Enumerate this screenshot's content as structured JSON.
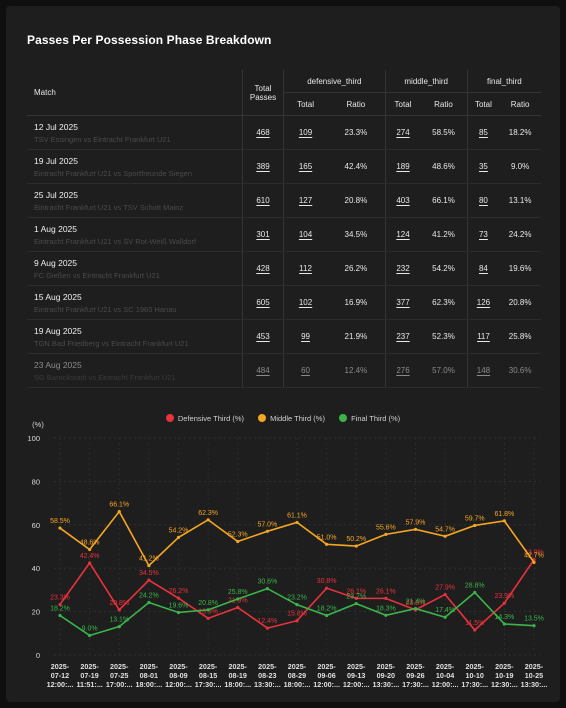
{
  "title": "Passes Per Possession Phase Breakdown",
  "table": {
    "headers": {
      "match": "Match",
      "total_passes": "Total Passes",
      "groups": [
        "defensive_third",
        "middle_third",
        "final_third"
      ],
      "total": "Total",
      "ratio": "Ratio"
    },
    "rows": [
      {
        "date": "12 Jul 2025",
        "teams": "TSV Essingen vs Eintracht Frankfurt U21",
        "total": "468",
        "def_total": "109",
        "def_ratio": "23.3%",
        "mid_total": "274",
        "mid_ratio": "58.5%",
        "fin_total": "85",
        "fin_ratio": "18.2%"
      },
      {
        "date": "19 Jul 2025",
        "teams": "Eintracht Frankfurt U21 vs Sportfreunde Siegen",
        "total": "389",
        "def_total": "165",
        "def_ratio": "42.4%",
        "mid_total": "189",
        "mid_ratio": "48.6%",
        "fin_total": "35",
        "fin_ratio": "9.0%"
      },
      {
        "date": "25 Jul 2025",
        "teams": "Eintracht Frankfurt U21 vs TSV Schott Mainz",
        "total": "610",
        "def_total": "127",
        "def_ratio": "20.8%",
        "mid_total": "403",
        "mid_ratio": "66.1%",
        "fin_total": "80",
        "fin_ratio": "13.1%"
      },
      {
        "date": "1 Aug 2025",
        "teams": "Eintracht Frankfurt U21 vs SV Rot-Weiß Walldorf",
        "total": "301",
        "def_total": "104",
        "def_ratio": "34.5%",
        "mid_total": "124",
        "mid_ratio": "41.2%",
        "fin_total": "73",
        "fin_ratio": "24.2%"
      },
      {
        "date": "9 Aug 2025",
        "teams": "FC Gießen vs Eintracht Frankfurt U21",
        "total": "428",
        "def_total": "112",
        "def_ratio": "26.2%",
        "mid_total": "232",
        "mid_ratio": "54.2%",
        "fin_total": "84",
        "fin_ratio": "19.6%"
      },
      {
        "date": "15 Aug 2025",
        "teams": "Eintracht Frankfurt U21 vs SC 1960 Hanau",
        "total": "605",
        "def_total": "102",
        "def_ratio": "16.9%",
        "mid_total": "377",
        "mid_ratio": "62.3%",
        "fin_total": "126",
        "fin_ratio": "20.8%"
      },
      {
        "date": "19 Aug 2025",
        "teams": "TGN Bad Friedberg vs Eintracht Frankfurt U21",
        "total": "453",
        "def_total": "99",
        "def_ratio": "21.9%",
        "mid_total": "237",
        "mid_ratio": "52.3%",
        "fin_total": "117",
        "fin_ratio": "25.8%"
      },
      {
        "date": "23 Aug 2025",
        "teams": "SG Barockstadt vs Eintracht Frankfurt U21",
        "total": "484",
        "def_total": "60",
        "def_ratio": "12.4%",
        "mid_total": "276",
        "mid_ratio": "57.0%",
        "fin_total": "148",
        "fin_ratio": "30.6%"
      }
    ]
  },
  "chart_data": {
    "type": "line",
    "ylabel": "(%)",
    "ylim": [
      0,
      100
    ],
    "yticks": [
      0,
      20,
      40,
      60,
      80,
      100
    ],
    "grid": true,
    "legend_position": "top-center",
    "x": [
      "2025-07-12 12:00:...",
      "2025-07-19 11:51:...",
      "2025-07-25 17:00:...",
      "2025-08-01 18:00:...",
      "2025-08-09 12:00:...",
      "2025-08-15 17:30:...",
      "2025-08-19 18:00:...",
      "2025-08-23 13:30:...",
      "2025-08-29 18:00:...",
      "2025-09-06 12:00:...",
      "2025-09-13 12:00:...",
      "2025-09-20 13:30:...",
      "2025-09-26 17:30:...",
      "2025-10-04 12:00:...",
      "2025-10-10 17:30:...",
      "2025-10-19 12:30:...",
      "2025-10-25 13:30:..."
    ],
    "series": [
      {
        "name": "Defensive Third (%)",
        "color": "#e8323c",
        "values": [
          23.3,
          42.4,
          20.8,
          34.5,
          26.2,
          16.9,
          21.9,
          12.4,
          15.8,
          30.8,
          26.1,
          26.1,
          20.8,
          27.9,
          11.5,
          23.9,
          43.9
        ]
      },
      {
        "name": "Middle Third (%)",
        "color": "#f5a623",
        "values": [
          58.5,
          48.6,
          66.1,
          41.2,
          54.2,
          62.3,
          52.3,
          57.0,
          61.1,
          51.0,
          50.2,
          55.6,
          57.9,
          54.7,
          59.7,
          61.8,
          42.7
        ]
      },
      {
        "name": "Final Third (%)",
        "color": "#3bb54a",
        "values": [
          18.2,
          9.0,
          13.1,
          24.2,
          19.6,
          20.8,
          25.8,
          30.6,
          23.2,
          18.2,
          23.7,
          18.3,
          21.4,
          17.4,
          28.8,
          14.3,
          13.5
        ]
      }
    ]
  }
}
